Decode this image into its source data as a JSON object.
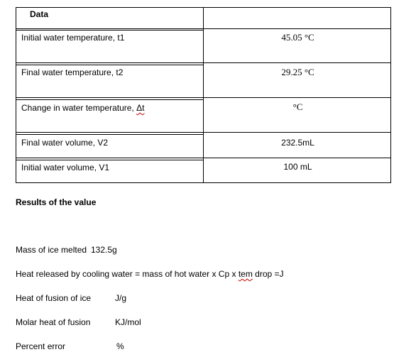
{
  "table": {
    "header": "Data",
    "rows": [
      {
        "label": "Initial water temperature, t1",
        "value": "45.05 °C"
      },
      {
        "label": "Final water temperature, t2",
        "value": "29.25 °C"
      },
      {
        "label_prefix": "Change in water temperature, ",
        "label_symbol": "Δt",
        "value": "°C"
      },
      {
        "label": "Final water volume, V2",
        "value": "232.5mL"
      },
      {
        "label": "Initial water volume, V1",
        "value": "100 mL"
      }
    ]
  },
  "results": {
    "heading": "Results of the value",
    "mass_ice_label": "Mass of ice melted",
    "mass_ice_value": "132.5g",
    "heat_released_prefix": "Heat released by cooling water = mass of hot water x Cp x ",
    "heat_released_tem": "tem",
    "heat_released_suffix": " drop =J",
    "heat_fusion_label": "Heat of fusion of ice",
    "heat_fusion_unit": "J/g",
    "molar_heat_label": "Molar heat of fusion",
    "molar_heat_unit": "KJ/mol",
    "percent_error_label": "Percent error",
    "percent_error_unit": "%"
  }
}
